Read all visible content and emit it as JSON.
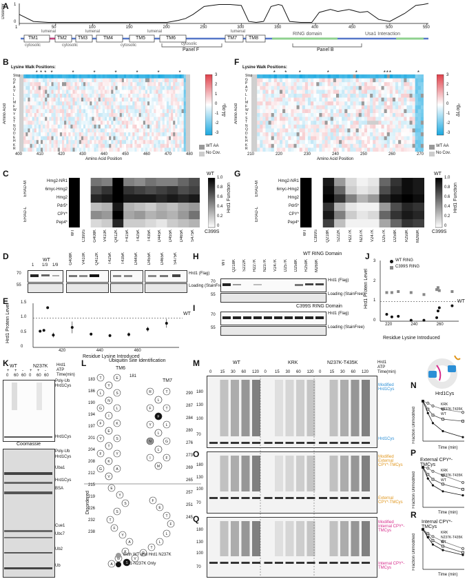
{
  "panels": {
    "A": "A",
    "B": "B",
    "C": "C",
    "D": "D",
    "E": "E",
    "F": "F",
    "G": "G",
    "H": "H",
    "I": "I",
    "J": "J",
    "K": "K",
    "L": "L",
    "M": "M",
    "N": "N",
    "O": "O",
    "P": "P",
    "Q": "Q",
    "R": "R"
  },
  "panelA": {
    "ylabel": "Disorder",
    "yticks": [
      "0",
      "1"
    ],
    "xticks": [
      "1",
      "50",
      "100",
      "150",
      "200",
      "250",
      "300",
      "350",
      "400",
      "450",
      "500",
      "550"
    ],
    "tm_labels": [
      "TM1",
      "TM2",
      "TM3",
      "TM4",
      "TM5",
      "TM6",
      "TM7",
      "TM8"
    ],
    "topology_top": [
      "lumenal",
      "lumenal",
      "lumenal",
      "lumenal"
    ],
    "topology_bottom": [
      "cytosolic",
      "cytosolic",
      "cytosolic",
      "cytosolic"
    ],
    "domains": [
      "RING domain",
      "Usa1 Interaction"
    ],
    "brackets": [
      "Panel F",
      "Panel B"
    ],
    "colors": {
      "lumenal": "#c8407a",
      "cytosolic": "#5577c8",
      "ring": "#8fd18f",
      "usa1": "#8fd18f",
      "line": "#111111"
    }
  },
  "panelB": {
    "title": "Lysine Walk Positions:",
    "ylabel": "Amino Acid",
    "xlabel": "Amino Acid Position",
    "xticks": [
      "400",
      "410",
      "420",
      "430",
      "440",
      "450",
      "460",
      "470",
      "480"
    ],
    "rows": [
      "Stop",
      "G",
      "P",
      "A",
      "V",
      "L",
      "I",
      "M",
      "F",
      "W",
      "Y",
      "S",
      "T",
      "N",
      "Q",
      "D",
      "E",
      "H",
      "K",
      "R"
    ],
    "groups": [
      "hydrophobic",
      "aromatic",
      "polar",
      "charged"
    ],
    "cbar_label": "ΔLog₂",
    "cbar_ticks": [
      "3",
      "2",
      "1",
      "0",
      "-1",
      "-2",
      "-3"
    ],
    "legend": [
      "WT AA",
      "No Cov."
    ]
  },
  "panelF": {
    "title": "Lysine Walk Positions:",
    "ylabel": "Amino Acid",
    "xlabel": "Amino Acid Position",
    "xticks": [
      "210",
      "220",
      "230",
      "240",
      "250",
      "260",
      "270"
    ],
    "cbar_label": "ΔLog₂",
    "cbar_ticks": [
      "3",
      "2",
      "1",
      "0",
      "-1",
      "-2",
      "-3"
    ],
    "legend": [
      "WT AA",
      "No Cov."
    ]
  },
  "panelC": {
    "rows": [
      "Hmg2-NR1",
      "6myc-Hmg2",
      "Hmg2",
      "Pdr5*",
      "CPY*",
      "Pep4*"
    ],
    "group_labels": [
      "ERAD-M",
      "ERAD-L"
    ],
    "cols": [
      "WT",
      "C399S",
      "G408K",
      "V410K",
      "Q412K",
      "F415K",
      "T425K",
      "T435K",
      "D445K",
      "D455K",
      "D465K",
      "S475K"
    ],
    "cbar_title": "Hrd1 Function",
    "cbar_ticks": [
      "1.0",
      "0.8",
      "0.6",
      "0.4",
      "0.2",
      "0"
    ],
    "cbar_top": "WT",
    "cbar_bottom": "C399S"
  },
  "panelG": {
    "rows": [
      "Hmg2-NR1",
      "6myc-Hmg2",
      "Hmg2",
      "Pdr5*",
      "CPY*",
      "Pep4*"
    ],
    "group_labels": [
      "ERAD-M",
      "ERAD-L"
    ],
    "cols": [
      "WT",
      "C399S",
      "Q218K",
      "S222K",
      "H227K",
      "N237K",
      "V247K",
      "D257K",
      "D258K",
      "R259K",
      "M269K"
    ],
    "cbar_title": "Hrd1 Function",
    "cbar_ticks": [
      "1.0",
      "0.8",
      "0.6",
      "0.4",
      "0.2",
      "0"
    ],
    "cbar_top": "WT",
    "cbar_bottom": "C399S"
  },
  "panelD": {
    "lanes_left": [
      "1",
      "1/3",
      "1/9"
    ],
    "lanes_left_header": "WT",
    "lanes": [
      "G408K",
      "V410K",
      "Q412K",
      "T425K",
      "T435K",
      "D445K",
      "D455K",
      "D465K",
      "S475K"
    ],
    "markers": [
      "70",
      "55"
    ],
    "labels": [
      "Hrd1 (Flag)",
      "Loading (StainFree)"
    ]
  },
  "panelE": {
    "ylabel": "Hrd1 Protein Level",
    "xlabel": "Residue Lysine Introduced",
    "yticks": [
      "0",
      "0.5",
      "1.0",
      "1.5"
    ],
    "xticks": [
      "420",
      "440",
      "460"
    ],
    "ref": "WT"
  },
  "panelH": {
    "title": "WT RING Domain",
    "lanes": [
      "WT",
      "Q218K",
      "S222K",
      "H227K",
      "N237K",
      "V247K",
      "D257K",
      "D258K",
      "R259K",
      "M269K"
    ],
    "markers": [
      "70",
      "55"
    ],
    "labels": [
      "Hrd1 (Flag)",
      "Loading (StainFree)"
    ]
  },
  "panelI": {
    "title": "C399S RING Domain",
    "markers": [
      "70",
      "55"
    ],
    "labels": [
      "Hrd1 (Flag)",
      "Loading (StainFree)"
    ]
  },
  "panelJ": {
    "ylabel": "Hrd1 Protein Level",
    "xlabel": "Residue Lysine Introduced",
    "yticks": [
      "0",
      "1",
      "2",
      "3"
    ],
    "xticks": [
      "220",
      "240",
      "260"
    ],
    "legend": [
      "WT RING",
      "C399S RING"
    ],
    "ref": "WT"
  },
  "panelK": {
    "header_right": [
      "Hrd1",
      "ATP",
      "Time(min)"
    ],
    "groups": [
      "WT",
      "N237K"
    ],
    "atp": [
      "+",
      "+",
      "-",
      "+",
      "+",
      "-"
    ],
    "times": [
      "0",
      "60",
      "60",
      "0",
      "60",
      "60"
    ],
    "top_labels": [
      "Poly-Ub",
      "Hrd1Cys"
    ],
    "top_side": "Hrd1Cys",
    "coomassie": "Coomassie",
    "bottom_labels": [
      "Poly-Ub",
      "Hrd1Cys",
      "Uba1",
      "Hrd1Cys",
      "BSA",
      "Cue1",
      "Ubc7",
      "Ub2",
      "Ub"
    ]
  },
  "panelL": {
    "title": "Ubiquitin Site Identification",
    "tm6": "TM6",
    "tm7": "TM7",
    "disordered": "Disordered",
    "left_numbers": [
      "183",
      "186",
      "190",
      "194",
      "197",
      "201",
      "204",
      "208",
      "212",
      "215",
      "219",
      "226",
      "232",
      "238"
    ],
    "right_numbers": [
      "290",
      "287",
      "284",
      "280",
      "276",
      "273",
      "269",
      "265",
      "257",
      "251",
      "245"
    ],
    "top_number": "181",
    "legend": [
      "Both WT and Hrd1 N237K",
      "Hrd1-N237K Only"
    ]
  },
  "panelM": {
    "groups": [
      "WT",
      "KRK",
      "N237K-T435K"
    ],
    "header_right": [
      "Hrd1",
      "ATP",
      "Time(min)"
    ],
    "times": [
      "0",
      "15",
      "30",
      "60",
      "120",
      "0",
      "15",
      "30",
      "60",
      "120",
      "0",
      "15",
      "30",
      "60",
      "120"
    ],
    "markers": [
      "180",
      "130",
      "100",
      "70"
    ],
    "label_mod": "Modified Hrd1Cys",
    "label_unmod": "Hrd1Cys"
  },
  "panelO": {
    "markers": [
      "180",
      "130",
      "100",
      "70"
    ],
    "label_mod": "Modified External CPY*-TMCys",
    "label_unmod": "External CPY*-TMCys"
  },
  "panelQ": {
    "markers": [
      "180",
      "130",
      "100",
      "70"
    ],
    "label_mod": "Modified Internal CPY*-TMCys",
    "label_unmod": "Internal CPY*-TMCys"
  },
  "panelN": {
    "title": "Hrd1Cys",
    "ylabel": "Fraction Unmodified",
    "xlabel": "Time (min)",
    "yticks": [
      "0",
      "0.2",
      "0.4",
      "0.6",
      "0.8",
      "1.0"
    ],
    "xticks": [
      "0",
      "60",
      "120"
    ],
    "legend": [
      "KRK",
      "N237K-T435K",
      "WT"
    ]
  },
  "panelP": {
    "title": "External CPY*-TMCys",
    "ylabel": "Fraction Unmodified",
    "xlabel": "Time (min)",
    "yticks": [
      "0",
      "0.2",
      "0.4",
      "0.6",
      "0.8",
      "1.0"
    ],
    "xticks": [
      "0",
      "60",
      "120"
    ],
    "legend": [
      "KRK",
      "N237K-T435K",
      "WT"
    ]
  },
  "panelR": {
    "title": "Internal CPY*-TMCys",
    "ylabel": "Fraction Unmodified",
    "xlabel": "Time (min)",
    "yticks": [
      "0",
      "0.2",
      "0.4",
      "0.6",
      "0.8",
      "1.0"
    ],
    "xticks": [
      "0",
      "60",
      "120"
    ],
    "legend": [
      "KRK",
      "N237K-T435K",
      "WT"
    ]
  },
  "chart_data": [
    {
      "type": "line",
      "id": "A",
      "xlabel": "",
      "ylabel": "Disorder",
      "xlim": [
        1,
        552
      ],
      "ylim": [
        0,
        1
      ],
      "series": [
        {
          "x": [
            1,
            20,
            40,
            60,
            70,
            80,
            90,
            100,
            120,
            140,
            160,
            180,
            200,
            215,
            225,
            235,
            250,
            270,
            285,
            300,
            310,
            320,
            330,
            340,
            350,
            355,
            365,
            380,
            395,
            405,
            420,
            430,
            445,
            460,
            470,
            485,
            500,
            520,
            535,
            545,
            552
          ],
          "values": [
            0.45,
            0.1,
            0.05,
            0.05,
            0.05,
            0.05,
            0.05,
            0.05,
            0.05,
            0.05,
            0.05,
            0.05,
            0.05,
            0.15,
            0.25,
            0.45,
            0.85,
            0.95,
            0.95,
            0.9,
            0.1,
            0.05,
            0.1,
            0.85,
            0.95,
            0.9,
            0.1,
            0.05,
            0.05,
            0.55,
            0.7,
            0.6,
            0.7,
            0.55,
            0.6,
            0.2,
            0.1,
            0.5,
            0.9,
            0.95,
            1.0
          ]
        }
      ]
    },
    {
      "type": "scatter",
      "id": "E",
      "xlabel": "Residue Lysine Introduced",
      "ylabel": "Hrd1 Protein Level",
      "ylim": [
        0,
        1.5
      ],
      "x": [
        408,
        410,
        412,
        415,
        425,
        435,
        445,
        455,
        465,
        475
      ],
      "values": [
        0.55,
        0.58,
        1.35,
        0.42,
        0.68,
        0.45,
        0.4,
        0.44,
        0.62,
        0.82
      ],
      "error": [
        0.03,
        0.03,
        0.0,
        0.08,
        0.2,
        0.05,
        0.05,
        0.07,
        0.08,
        0.15
      ]
    },
    {
      "type": "scatter",
      "id": "J",
      "xlabel": "Residue Lysine Introduced",
      "ylabel": "Hrd1 Protein Level",
      "ylim": [
        0,
        3
      ],
      "series": [
        {
          "name": "WT RING",
          "x": [
            218,
            222,
            227,
            237,
            247,
            257,
            258,
            259,
            269
          ],
          "values": [
            0.35,
            0.22,
            0.25,
            0.05,
            0.05,
            0.18,
            0.52,
            0.68,
            0.78
          ]
        },
        {
          "name": "C399S RING",
          "x": [
            218,
            222,
            227,
            237,
            247,
            257,
            258,
            259,
            269
          ],
          "values": [
            1.45,
            1.45,
            1.5,
            1.45,
            1.35,
            1.6,
            1.7,
            1.55,
            1.5
          ]
        }
      ]
    },
    {
      "type": "line",
      "id": "N",
      "title": "Hrd1Cys",
      "xlabel": "Time (min)",
      "ylabel": "Fraction Unmodified",
      "ylim": [
        0,
        1
      ],
      "x": [
        0,
        15,
        30,
        60,
        120
      ],
      "series": [
        {
          "name": "KRK",
          "values": [
            1.0,
            0.95,
            0.88,
            0.8,
            0.72
          ]
        },
        {
          "name": "N237K-T435K",
          "values": [
            1.0,
            0.8,
            0.65,
            0.55,
            0.5
          ]
        },
        {
          "name": "WT",
          "values": [
            1.0,
            0.7,
            0.45,
            0.25,
            0.1
          ]
        }
      ]
    },
    {
      "type": "line",
      "id": "P",
      "title": "External CPY*-TMCys",
      "xlabel": "Time (min)",
      "ylabel": "Fraction Unmodified",
      "ylim": [
        0,
        1
      ],
      "x": [
        0,
        15,
        30,
        60,
        120
      ],
      "series": [
        {
          "name": "KRK",
          "values": [
            1.0,
            0.98,
            0.9,
            0.8,
            0.62
          ]
        },
        {
          "name": "N237K-T435K",
          "values": [
            1.0,
            0.82,
            0.7,
            0.58,
            0.45
          ]
        },
        {
          "name": "WT",
          "values": [
            1.0,
            0.72,
            0.55,
            0.4,
            0.3
          ]
        }
      ]
    },
    {
      "type": "line",
      "id": "R",
      "title": "Internal CPY*-TMCys",
      "xlabel": "Time (min)",
      "ylabel": "Fraction Unmodified",
      "ylim": [
        0,
        1
      ],
      "x": [
        0,
        15,
        30,
        60,
        120
      ],
      "series": [
        {
          "name": "KRK",
          "values": [
            1.0,
            0.9,
            0.82,
            0.7,
            0.52
          ]
        },
        {
          "name": "N237K-T435K",
          "values": [
            1.0,
            0.85,
            0.72,
            0.58,
            0.42
          ]
        },
        {
          "name": "WT",
          "values": [
            1.0,
            0.8,
            0.62,
            0.48,
            0.36
          ]
        }
      ]
    }
  ]
}
